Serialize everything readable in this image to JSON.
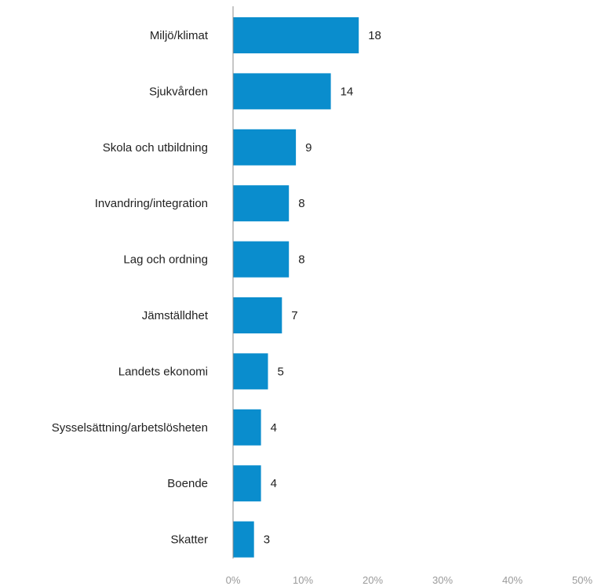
{
  "chart_data": {
    "type": "bar",
    "orientation": "horizontal",
    "title": "",
    "xlabel": "",
    "ylabel": "",
    "categories": [
      "Miljö/klimat",
      "Sjukvården",
      "Skola och utbildning",
      "Invandring/integration",
      "Lag och ordning",
      "Jämställdhet",
      "Landets ekonomi",
      "Sysselsättning/arbetslösheten",
      "Boende",
      "Skatter"
    ],
    "values": [
      18,
      14,
      9,
      8,
      8,
      7,
      5,
      4,
      4,
      3
    ],
    "value_labels": [
      "18",
      "14",
      "9",
      "8",
      "8",
      "7",
      "5",
      "4",
      "4",
      "3"
    ],
    "xlim": [
      0,
      50
    ],
    "x_ticks": [
      0,
      10,
      20,
      30,
      40,
      50
    ],
    "x_tick_labels": [
      "0%",
      "10%",
      "20%",
      "30%",
      "40%",
      "50%"
    ],
    "grid": false,
    "legend": "none",
    "bar_color": "#0a8dcd",
    "axis_color": "#8c8c8c"
  }
}
